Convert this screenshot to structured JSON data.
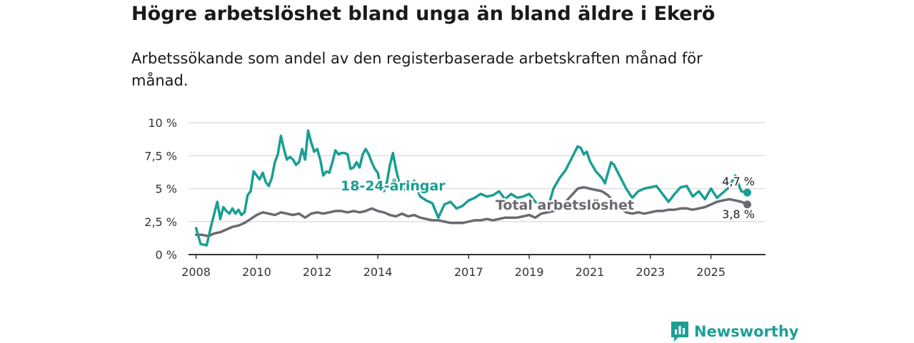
{
  "title": "Högre arbetslöshet bland unga än bland äldre i Ekerö",
  "subtitle": "Arbetssökande som andel av den registerbaserade arbetskraften månad för månad.",
  "brand": {
    "name": "Newsworthy"
  },
  "colors": {
    "youth": "#1a9e94",
    "total": "#6b6a70",
    "grid": "#d9d9d9",
    "axis": "#333333",
    "brand": "#1d9f96"
  },
  "chart_data": {
    "type": "line",
    "title": "Högre arbetslöshet bland unga än bland äldre i Ekerö",
    "subtitle": "Arbetssökande som andel av den registerbaserade arbetskraften månad för månad.",
    "xlabel": "",
    "ylabel": "",
    "xlim": [
      2007.75,
      2026.8
    ],
    "ylim": [
      0,
      10
    ],
    "yticks": [
      0,
      2.5,
      5,
      7.5,
      10
    ],
    "ytick_labels": [
      "0 %",
      "2,5 %",
      "5 %",
      "7,5 %",
      "10 %"
    ],
    "xticks": [
      2008,
      2010,
      2012,
      2014,
      2017,
      2019,
      2021,
      2023,
      2025
    ],
    "xtick_labels": [
      "2008",
      "2010",
      "2012",
      "2014",
      "2017",
      "2019",
      "2021",
      "2023",
      "2025"
    ],
    "grid": true,
    "series": [
      {
        "name": "18-24-åringar",
        "last_label": "4,7 %",
        "x": [
          2008.0,
          2008.15,
          2008.35,
          2008.5,
          2008.7,
          2008.8,
          2008.9,
          2009.0,
          2009.1,
          2009.2,
          2009.3,
          2009.4,
          2009.5,
          2009.6,
          2009.7,
          2009.8,
          2009.9,
          2010.0,
          2010.1,
          2010.2,
          2010.3,
          2010.4,
          2010.5,
          2010.6,
          2010.7,
          2010.8,
          2010.9,
          2011.0,
          2011.1,
          2011.2,
          2011.3,
          2011.4,
          2011.5,
          2011.6,
          2011.7,
          2011.8,
          2011.9,
          2012.0,
          2012.1,
          2012.2,
          2012.3,
          2012.4,
          2012.5,
          2012.6,
          2012.7,
          2012.8,
          2012.9,
          2013.0,
          2013.1,
          2013.2,
          2013.3,
          2013.4,
          2013.5,
          2013.6,
          2013.7,
          2013.8,
          2013.9,
          2014.0,
          2014.1,
          2014.2,
          2014.3,
          2014.4,
          2014.5,
          2014.6,
          2014.7,
          2014.8,
          2015.0,
          2015.2,
          2015.4,
          2015.6,
          2015.8,
          2016.0,
          2016.2,
          2016.4,
          2016.6,
          2016.8,
          2017.0,
          2017.2,
          2017.4,
          2017.6,
          2017.8,
          2018.0,
          2018.2,
          2018.4,
          2018.6,
          2018.8,
          2019.0,
          2019.2,
          2019.4,
          2019.6,
          2019.8,
          2020.0,
          2020.2,
          2020.4,
          2020.6,
          2020.7,
          2020.8,
          2020.9,
          2021.0,
          2021.2,
          2021.4,
          2021.5,
          2021.6,
          2021.7,
          2021.8,
          2022.0,
          2022.2,
          2022.4,
          2022.6,
          2022.8,
          2023.0,
          2023.2,
          2023.4,
          2023.6,
          2023.8,
          2024.0,
          2024.2,
          2024.4,
          2024.6,
          2024.8,
          2025.0,
          2025.2,
          2025.4,
          2025.6,
          2025.8,
          2026.0,
          2026.2
        ],
        "y": [
          2.0,
          0.8,
          0.7,
          2.2,
          4.0,
          2.7,
          3.6,
          3.3,
          3.1,
          3.5,
          3.1,
          3.4,
          3.0,
          3.2,
          4.5,
          4.8,
          6.3,
          6.0,
          5.7,
          6.2,
          5.5,
          5.2,
          5.8,
          7.0,
          7.6,
          9.0,
          8.0,
          7.2,
          7.4,
          7.2,
          6.8,
          7.0,
          8.0,
          7.2,
          9.4,
          8.5,
          7.8,
          8.0,
          7.2,
          6.0,
          6.3,
          6.2,
          7.0,
          7.9,
          7.6,
          7.7,
          7.7,
          7.6,
          6.5,
          6.6,
          7.0,
          6.6,
          7.6,
          8.0,
          7.6,
          7.0,
          6.5,
          6.2,
          5.0,
          4.8,
          5.5,
          6.8,
          7.7,
          6.5,
          5.5,
          5.0,
          4.8,
          5.6,
          4.4,
          4.1,
          3.9,
          2.8,
          3.8,
          4.0,
          3.5,
          3.7,
          4.1,
          4.3,
          4.6,
          4.4,
          4.5,
          4.8,
          4.2,
          4.6,
          4.3,
          4.4,
          4.6,
          4.0,
          3.8,
          3.4,
          5.0,
          5.8,
          6.4,
          7.3,
          8.2,
          8.1,
          7.6,
          7.8,
          7.1,
          6.3,
          5.8,
          5.4,
          6.2,
          7.0,
          6.8,
          5.9,
          5.0,
          4.3,
          4.8,
          5.0,
          5.1,
          5.2,
          4.6,
          4.0,
          4.6,
          5.1,
          5.2,
          4.4,
          4.8,
          4.2,
          5.0,
          4.3,
          4.7,
          5.1,
          6.0,
          4.8,
          4.7
        ]
      },
      {
        "name": "Total arbetslöshet",
        "last_label": "3,8 %",
        "x": [
          2008.0,
          2008.2,
          2008.4,
          2008.6,
          2008.8,
          2009.0,
          2009.2,
          2009.4,
          2009.6,
          2009.8,
          2010.0,
          2010.2,
          2010.4,
          2010.6,
          2010.8,
          2011.0,
          2011.2,
          2011.4,
          2011.6,
          2011.8,
          2012.0,
          2012.2,
          2012.4,
          2012.6,
          2012.8,
          2013.0,
          2013.2,
          2013.4,
          2013.6,
          2013.8,
          2014.0,
          2014.2,
          2014.4,
          2014.6,
          2014.8,
          2015.0,
          2015.2,
          2015.4,
          2015.6,
          2015.8,
          2016.0,
          2016.2,
          2016.4,
          2016.6,
          2016.8,
          2017.0,
          2017.2,
          2017.4,
          2017.6,
          2017.8,
          2018.0,
          2018.2,
          2018.4,
          2018.6,
          2018.8,
          2019.0,
          2019.2,
          2019.4,
          2019.6,
          2019.8,
          2020.0,
          2020.2,
          2020.4,
          2020.6,
          2020.8,
          2021.0,
          2021.2,
          2021.4,
          2021.6,
          2021.8,
          2022.0,
          2022.2,
          2022.4,
          2022.6,
          2022.8,
          2023.0,
          2023.2,
          2023.4,
          2023.6,
          2023.8,
          2024.0,
          2024.2,
          2024.4,
          2024.6,
          2024.8,
          2025.0,
          2025.2,
          2025.4,
          2025.6,
          2025.8,
          2026.0,
          2026.2
        ],
        "y": [
          1.5,
          1.5,
          1.4,
          1.6,
          1.7,
          1.9,
          2.1,
          2.2,
          2.4,
          2.7,
          3.0,
          3.2,
          3.1,
          3.0,
          3.2,
          3.1,
          3.0,
          3.1,
          2.8,
          3.1,
          3.2,
          3.1,
          3.2,
          3.3,
          3.3,
          3.2,
          3.3,
          3.2,
          3.3,
          3.5,
          3.3,
          3.2,
          3.0,
          2.9,
          3.1,
          2.9,
          3.0,
          2.8,
          2.7,
          2.6,
          2.6,
          2.5,
          2.4,
          2.4,
          2.4,
          2.5,
          2.6,
          2.6,
          2.7,
          2.6,
          2.7,
          2.8,
          2.8,
          2.8,
          2.9,
          3.0,
          2.8,
          3.1,
          3.2,
          3.3,
          3.5,
          4.0,
          4.5,
          5.0,
          5.1,
          5.0,
          4.9,
          4.8,
          4.5,
          4.0,
          3.5,
          3.2,
          3.1,
          3.2,
          3.1,
          3.2,
          3.3,
          3.3,
          3.4,
          3.4,
          3.5,
          3.5,
          3.4,
          3.5,
          3.6,
          3.8,
          4.0,
          4.1,
          4.2,
          4.1,
          4.0,
          3.8
        ]
      }
    ],
    "series_labels": [
      {
        "text": "18-24-åringar",
        "series": 0
      },
      {
        "text": "Total arbetslöshet",
        "series": 1
      }
    ]
  }
}
